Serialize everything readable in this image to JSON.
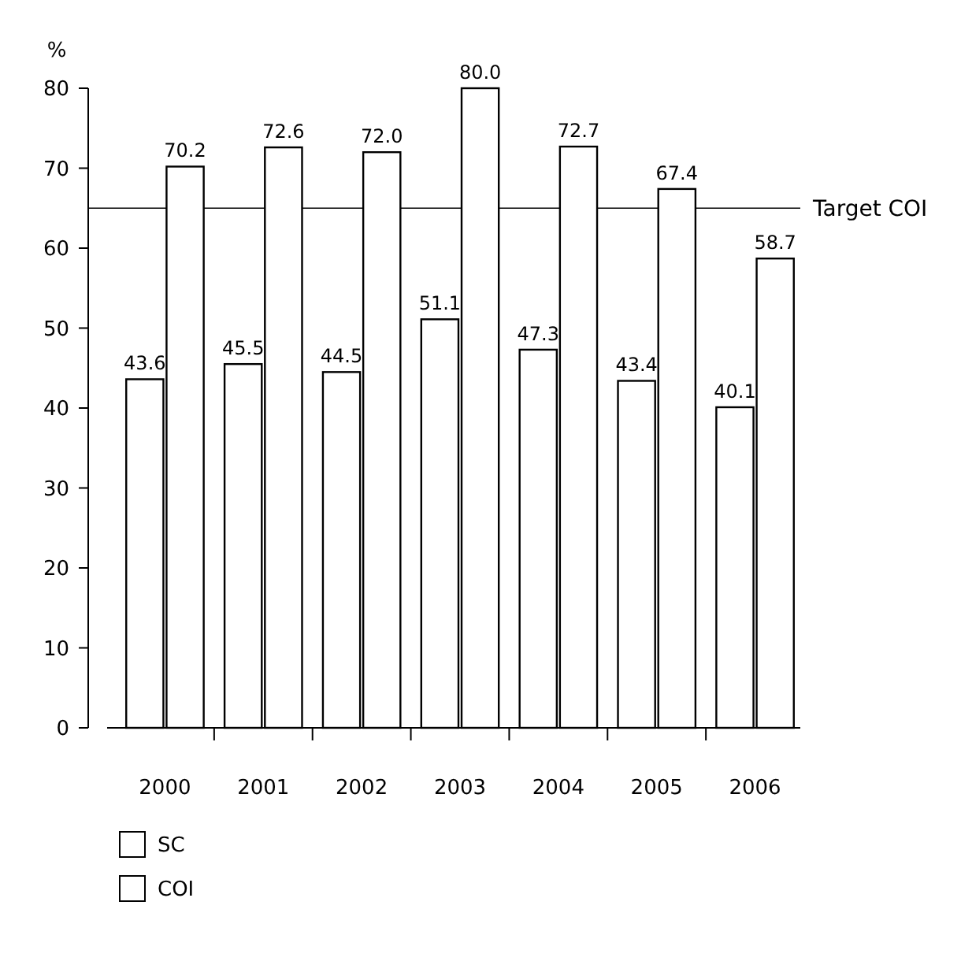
{
  "chart_data": {
    "type": "bar",
    "ylabel": "%",
    "categories": [
      "2000",
      "2001",
      "2002",
      "2003",
      "2004",
      "2005",
      "2006"
    ],
    "series": [
      {
        "name": "SC",
        "color": "#ffffff",
        "values": [
          43.6,
          45.5,
          44.5,
          51.1,
          47.3,
          43.4,
          40.1
        ],
        "value_labels": [
          "43.6",
          "45.5",
          "44.5",
          "51.1",
          "47.3",
          "43.4",
          "40.1"
        ]
      },
      {
        "name": "COI",
        "color": "#ffffff",
        "values": [
          70.2,
          72.6,
          72.0,
          80.0,
          72.7,
          67.4,
          58.7
        ],
        "value_labels": [
          "70.2",
          "72.6",
          "72.0",
          "80.0",
          "72.7",
          "67.4",
          "58.7"
        ]
      }
    ],
    "ylim": [
      0,
      80
    ],
    "yticks": [
      0,
      10,
      20,
      30,
      40,
      50,
      60,
      70,
      80
    ],
    "legend": "bottom left",
    "grid": false,
    "ref_lines": [
      {
        "axis": "y",
        "value": 65,
        "label": "Target COI"
      }
    ]
  }
}
